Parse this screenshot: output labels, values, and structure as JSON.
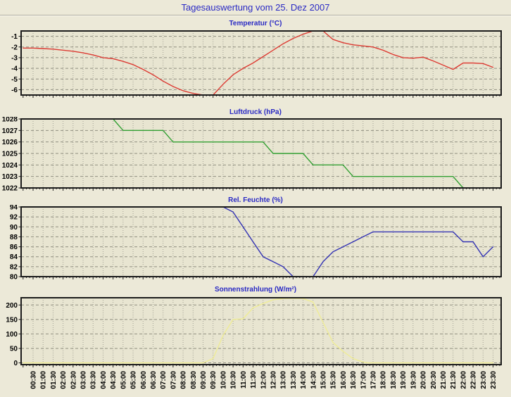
{
  "page": {
    "title": "Tagesauswertung vom 25. Dez 2007"
  },
  "colors": {
    "page_bg": "#ece9d8",
    "plot_bg": "#e8e5d1",
    "frame": "#1c1c1c",
    "grid_v": "#a3a295",
    "grid_h": "#8f8e80",
    "title_blue": "#2a2ac4",
    "temperature_line": "#dc3b33",
    "pressure_line": "#33a033",
    "humidity_line": "#3434b4",
    "radiation_line": "#efec96"
  },
  "x_axis": {
    "labels": [
      "00:30",
      "01:00",
      "01:30",
      "02:00",
      "02:30",
      "03:00",
      "03:30",
      "04:00",
      "04:30",
      "05:00",
      "05:30",
      "06:00",
      "06:30",
      "07:00",
      "07:30",
      "08:00",
      "08:30",
      "09:00",
      "09:30",
      "10:00",
      "10:30",
      "11:00",
      "11:30",
      "12:00",
      "12:30",
      "13:00",
      "13:30",
      "14:00",
      "14:30",
      "15:00",
      "15:30",
      "16:00",
      "16:30",
      "17:00",
      "17:30",
      "18:00",
      "18:30",
      "19:00",
      "19:30",
      "20:00",
      "20:30",
      "21:00",
      "21:30",
      "22:00",
      "22:30",
      "23:00",
      "23:30"
    ]
  },
  "chart_data": [
    {
      "type": "line",
      "title": "Temperatur (°C)",
      "color": "#dc3b33",
      "ylim": [
        -6.5,
        -0.5
      ],
      "yticks": [
        -6,
        -5,
        -4,
        -3,
        -2,
        -1
      ],
      "grid": true,
      "legend": "none",
      "points": [
        [
          "00:00",
          -2.1
        ],
        [
          "00:30",
          -2.1
        ],
        [
          "01:00",
          -2.15
        ],
        [
          "01:30",
          -2.2
        ],
        [
          "02:00",
          -2.3
        ],
        [
          "02:30",
          -2.4
        ],
        [
          "03:00",
          -2.55
        ],
        [
          "03:30",
          -2.75
        ],
        [
          "04:00",
          -3.0
        ],
        [
          "04:30",
          -3.1
        ],
        [
          "05:00",
          -3.35
        ],
        [
          "05:30",
          -3.65
        ],
        [
          "06:00",
          -4.1
        ],
        [
          "06:30",
          -4.6
        ],
        [
          "07:00",
          -5.2
        ],
        [
          "07:30",
          -5.7
        ],
        [
          "08:00",
          -6.1
        ],
        [
          "08:30",
          -6.35
        ],
        [
          "09:00",
          -6.5
        ],
        [
          "09:30",
          -6.5
        ],
        [
          "10:00",
          -5.5
        ],
        [
          "10:30",
          -4.6
        ],
        [
          "11:00",
          -4.0
        ],
        [
          "11:30",
          -3.5
        ],
        [
          "12:00",
          -2.9
        ],
        [
          "12:30",
          -2.3
        ],
        [
          "13:00",
          -1.7
        ],
        [
          "13:30",
          -1.2
        ],
        [
          "14:00",
          -0.8
        ],
        [
          "14:30",
          -0.5
        ],
        [
          "15:00",
          -0.5
        ],
        [
          "15:30",
          -1.3
        ],
        [
          "16:00",
          -1.6
        ],
        [
          "16:30",
          -1.8
        ],
        [
          "17:00",
          -1.9
        ],
        [
          "17:30",
          -2.0
        ],
        [
          "18:00",
          -2.3
        ],
        [
          "18:30",
          -2.7
        ],
        [
          "19:00",
          -3.0
        ],
        [
          "19:30",
          -3.05
        ],
        [
          "20:00",
          -2.95
        ],
        [
          "20:30",
          -3.3
        ],
        [
          "21:00",
          -3.7
        ],
        [
          "21:30",
          -4.1
        ],
        [
          "22:00",
          -3.5
        ],
        [
          "22:30",
          -3.5
        ],
        [
          "23:00",
          -3.55
        ],
        [
          "23:30",
          -3.9
        ]
      ]
    },
    {
      "type": "line",
      "title": "Luftdruck (hPa)",
      "color": "#33a033",
      "ylim": [
        1022,
        1028
      ],
      "yticks": [
        1022,
        1023,
        1024,
        1025,
        1026,
        1027,
        1028
      ],
      "grid": true,
      "legend": "none",
      "points": [
        [
          "04:30",
          1028
        ],
        [
          "05:00",
          1027
        ],
        [
          "07:00",
          1027
        ],
        [
          "07:30",
          1026
        ],
        [
          "12:00",
          1026
        ],
        [
          "12:30",
          1025
        ],
        [
          "14:00",
          1025
        ],
        [
          "14:30",
          1024
        ],
        [
          "16:00",
          1024
        ],
        [
          "16:30",
          1023
        ],
        [
          "21:30",
          1023
        ],
        [
          "22:00",
          1022
        ]
      ]
    },
    {
      "type": "line",
      "title": "Rel. Feuchte (%)",
      "color": "#3434b4",
      "ylim": [
        80,
        94
      ],
      "yticks": [
        80,
        82,
        84,
        86,
        88,
        90,
        92,
        94
      ],
      "grid": true,
      "legend": "none",
      "points": [
        [
          "10:00",
          94
        ],
        [
          "10:30",
          93
        ],
        [
          "11:00",
          90
        ],
        [
          "11:30",
          87
        ],
        [
          "12:00",
          84
        ],
        [
          "12:30",
          83
        ],
        [
          "13:00",
          82
        ],
        [
          "13:30",
          80
        ],
        [
          "14:30",
          80
        ],
        [
          "15:00",
          83
        ],
        [
          "15:30",
          85
        ],
        [
          "16:00",
          86
        ],
        [
          "16:30",
          87
        ],
        [
          "17:00",
          88
        ],
        [
          "17:30",
          89
        ],
        [
          "21:30",
          89
        ],
        [
          "22:00",
          87
        ],
        [
          "22:30",
          87
        ],
        [
          "23:00",
          84
        ],
        [
          "23:30",
          86
        ]
      ]
    },
    {
      "type": "line",
      "title": "Sonnenstrahlung (W/m²)",
      "color": "#efec96",
      "ylim": [
        -6,
        225
      ],
      "yticks": [
        0,
        50,
        100,
        150,
        200
      ],
      "grid": true,
      "legend": "none",
      "points": [
        [
          "00:00",
          0
        ],
        [
          "09:00",
          0
        ],
        [
          "09:30",
          15
        ],
        [
          "10:00",
          95
        ],
        [
          "10:30",
          150
        ],
        [
          "11:00",
          152
        ],
        [
          "11:30",
          190
        ],
        [
          "12:00",
          205
        ],
        [
          "12:30",
          218
        ],
        [
          "13:00",
          222
        ],
        [
          "13:30",
          223
        ],
        [
          "14:00",
          222
        ],
        [
          "14:30",
          210
        ],
        [
          "15:00",
          140
        ],
        [
          "15:30",
          70
        ],
        [
          "16:00",
          40
        ],
        [
          "16:30",
          15
        ],
        [
          "17:00",
          3
        ],
        [
          "17:15",
          0
        ],
        [
          "23:30",
          0
        ]
      ]
    }
  ]
}
